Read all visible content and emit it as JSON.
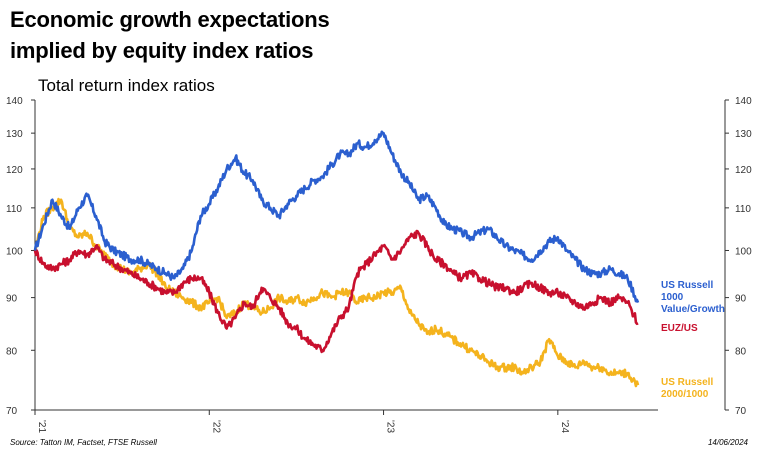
{
  "title_line1": "Economic growth expectations",
  "title_line2": "implied by equity index ratios",
  "source": "Source: Tatton IM, Factset, FTSE Russell",
  "date": "14/06/2024",
  "chart_data": {
    "type": "line",
    "title": "Economic growth expectations implied by equity index ratios",
    "subtitle": "Total return index ratios",
    "xlabel": "",
    "ylabel": "",
    "x_ticks": [
      "'21",
      "'22",
      "'23",
      "'24"
    ],
    "x_range": [
      2021.0,
      2024.46
    ],
    "ylim": [
      70,
      140
    ],
    "y_scale": "log",
    "y_ticks": [
      70,
      80,
      90,
      100,
      110,
      120,
      130,
      140
    ],
    "grid": false,
    "series": [
      {
        "name": "US Russell 1000 Value/Growth",
        "color": "#2b5fcf",
        "x": [
          2021.0,
          2021.05,
          2021.1,
          2021.15,
          2021.2,
          2021.25,
          2021.3,
          2021.35,
          2021.4,
          2021.45,
          2021.5,
          2021.55,
          2021.6,
          2021.65,
          2021.7,
          2021.75,
          2021.8,
          2021.85,
          2021.9,
          2021.95,
          2022.0,
          2022.05,
          2022.1,
          2022.15,
          2022.2,
          2022.25,
          2022.3,
          2022.35,
          2022.4,
          2022.45,
          2022.5,
          2022.55,
          2022.6,
          2022.65,
          2022.7,
          2022.75,
          2022.8,
          2022.85,
          2022.9,
          2022.95,
          2023.0,
          2023.05,
          2023.1,
          2023.15,
          2023.2,
          2023.25,
          2023.3,
          2023.35,
          2023.4,
          2023.45,
          2023.5,
          2023.55,
          2023.6,
          2023.65,
          2023.7,
          2023.75,
          2023.8,
          2023.85,
          2023.9,
          2023.95,
          2024.0,
          2024.05,
          2024.1,
          2024.15,
          2024.2,
          2024.25,
          2024.3,
          2024.35,
          2024.4,
          2024.46
        ],
        "y": [
          100,
          106,
          112,
          108,
          105,
          110,
          113,
          108,
          102,
          100,
          99,
          98,
          98,
          97,
          96,
          95,
          94,
          96,
          100,
          108,
          111,
          115,
          120,
          123,
          119,
          117,
          112,
          110,
          108,
          111,
          113,
          115,
          117,
          118,
          121,
          124,
          124,
          127,
          126,
          128,
          130,
          124,
          119,
          116,
          112,
          113,
          110,
          106,
          105,
          104,
          103,
          104,
          105,
          103,
          101,
          100,
          99,
          98,
          100,
          102,
          103,
          100,
          98,
          96,
          95,
          95,
          96,
          95,
          94,
          89
        ]
      },
      {
        "name": "EUZ/US",
        "color": "#c8102e",
        "x": [
          2021.0,
          2021.05,
          2021.1,
          2021.15,
          2021.2,
          2021.25,
          2021.3,
          2021.35,
          2021.4,
          2021.45,
          2021.5,
          2021.55,
          2021.6,
          2021.65,
          2021.7,
          2021.75,
          2021.8,
          2021.85,
          2021.9,
          2021.95,
          2022.0,
          2022.05,
          2022.1,
          2022.15,
          2022.2,
          2022.25,
          2022.3,
          2022.35,
          2022.4,
          2022.45,
          2022.5,
          2022.55,
          2022.6,
          2022.65,
          2022.7,
          2022.75,
          2022.8,
          2022.85,
          2022.9,
          2022.95,
          2023.0,
          2023.05,
          2023.1,
          2023.15,
          2023.2,
          2023.25,
          2023.3,
          2023.35,
          2023.4,
          2023.45,
          2023.5,
          2023.55,
          2023.6,
          2023.65,
          2023.7,
          2023.75,
          2023.8,
          2023.85,
          2023.9,
          2023.95,
          2024.0,
          2024.05,
          2024.1,
          2024.15,
          2024.2,
          2024.25,
          2024.3,
          2024.35,
          2024.4,
          2024.46
        ],
        "y": [
          100,
          97,
          96,
          97,
          98,
          100,
          99,
          101,
          98,
          97,
          96,
          95,
          94,
          93,
          92,
          91,
          91,
          93,
          94,
          94,
          91,
          87,
          84,
          86,
          89,
          88,
          92,
          90,
          88,
          85,
          84,
          82,
          81,
          80,
          83,
          86,
          88,
          95,
          97,
          99,
          101,
          98,
          100,
          103,
          104,
          101,
          98,
          97,
          95,
          94,
          95,
          94,
          93,
          92,
          92,
          91,
          92,
          93,
          92,
          91,
          91,
          90,
          89,
          88,
          89,
          90,
          89,
          90,
          89,
          85
        ]
      },
      {
        "name": "US Russell 2000/1000",
        "color": "#f4b31d",
        "x": [
          2021.0,
          2021.05,
          2021.1,
          2021.15,
          2021.2,
          2021.25,
          2021.3,
          2021.35,
          2021.4,
          2021.45,
          2021.5,
          2021.55,
          2021.6,
          2021.65,
          2021.7,
          2021.75,
          2021.8,
          2021.85,
          2021.9,
          2021.95,
          2022.0,
          2022.05,
          2022.1,
          2022.15,
          2022.2,
          2022.25,
          2022.3,
          2022.35,
          2022.4,
          2022.45,
          2022.5,
          2022.55,
          2022.6,
          2022.65,
          2022.7,
          2022.75,
          2022.8,
          2022.85,
          2022.9,
          2022.95,
          2023.0,
          2023.05,
          2023.1,
          2023.15,
          2023.2,
          2023.25,
          2023.3,
          2023.35,
          2023.4,
          2023.45,
          2023.5,
          2023.55,
          2023.6,
          2023.65,
          2023.7,
          2023.75,
          2023.8,
          2023.85,
          2023.9,
          2023.95,
          2024.0,
          2024.05,
          2024.1,
          2024.15,
          2024.2,
          2024.25,
          2024.3,
          2024.35,
          2024.4,
          2024.46
        ],
        "y": [
          100,
          108,
          110,
          112,
          105,
          103,
          104,
          101,
          99,
          97,
          96,
          95,
          96,
          97,
          95,
          92,
          91,
          90,
          89,
          88,
          89,
          90,
          86,
          87,
          89,
          88,
          87,
          88,
          90,
          89,
          90,
          89,
          90,
          91,
          90,
          91,
          91,
          89,
          90,
          90,
          91,
          91,
          92,
          87,
          85,
          83,
          84,
          83,
          82,
          81,
          80,
          79,
          78,
          77,
          77,
          77,
          76,
          77,
          78,
          82,
          79,
          78,
          77,
          78,
          77,
          77,
          76,
          76,
          76,
          74
        ]
      }
    ]
  },
  "legend": {
    "blue_lines": [
      "US Russell",
      "1000",
      "Value/Growth"
    ],
    "red_lines": [
      "EUZ/US"
    ],
    "yellow_lines": [
      "US Russell",
      "2000/1000"
    ]
  }
}
